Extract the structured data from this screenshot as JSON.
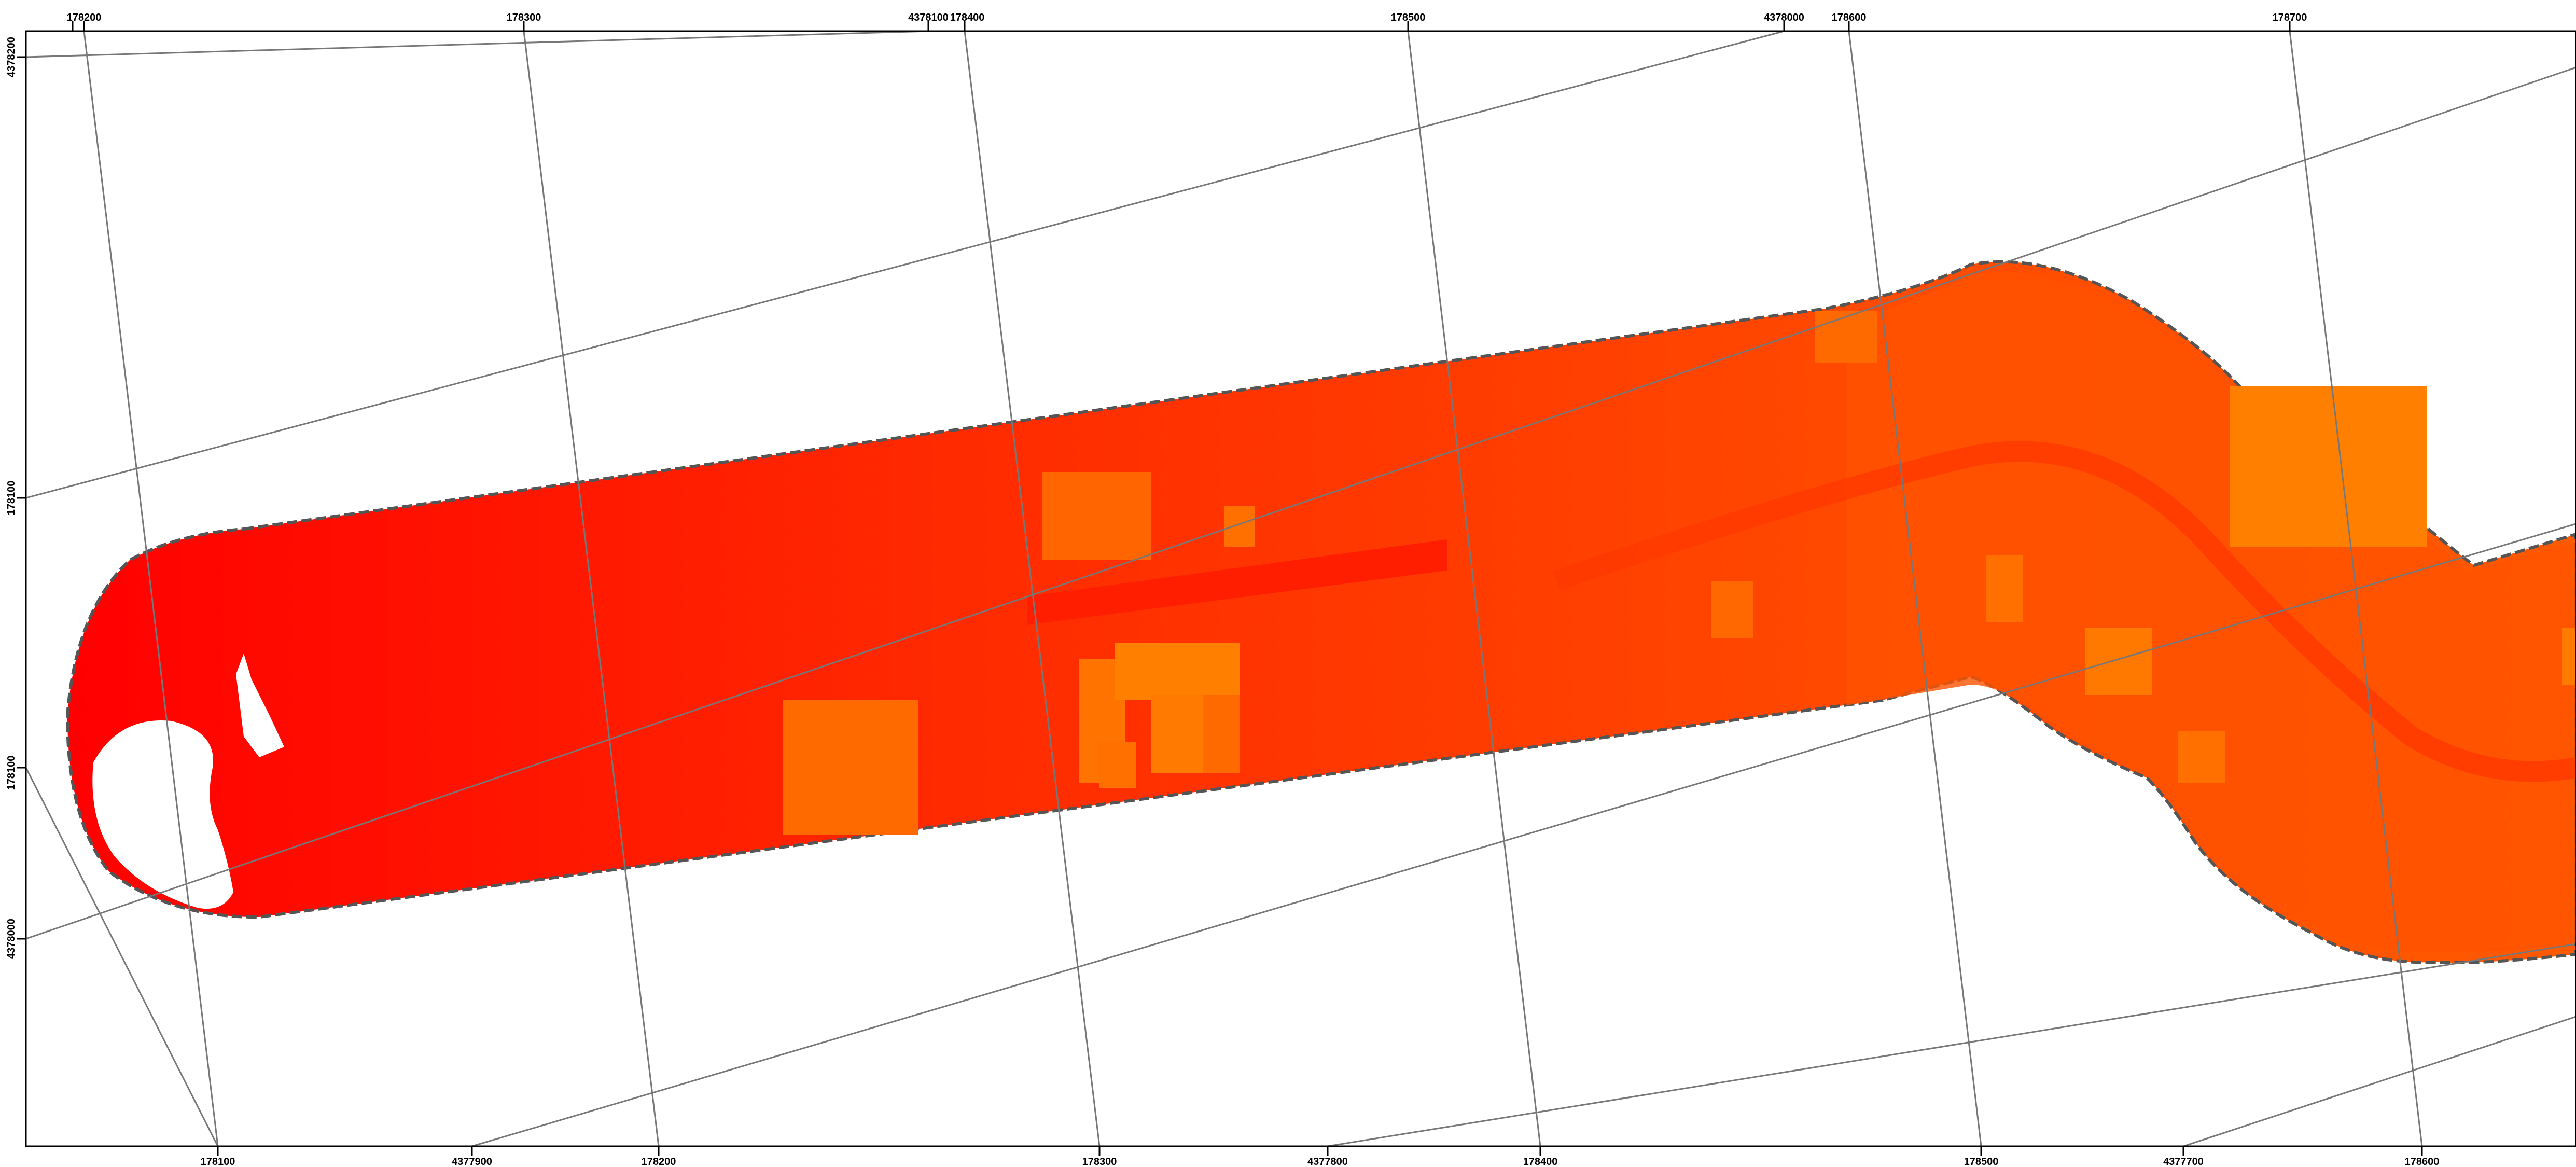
{
  "map": {
    "colors": {
      "background": "#ffffff",
      "frame": "#000000",
      "graticule": "#777777",
      "outline": "#555555",
      "fill_low": "#ff0000",
      "fill_mid": "#ff3300",
      "fill_high": "#ff5a00",
      "fill_peak": "#ff8000"
    },
    "top_labels": [
      "178200",
      "178300",
      "4378100",
      "178400",
      "178500",
      "4378000",
      "178600",
      "178700"
    ],
    "bottom_labels": [
      "178100",
      "4377900",
      "178200",
      "178300",
      "4377800",
      "178400",
      "178500",
      "4377700",
      "178600"
    ],
    "left_labels": [
      "4378200",
      "178100",
      "178100",
      "4378000"
    ]
  }
}
